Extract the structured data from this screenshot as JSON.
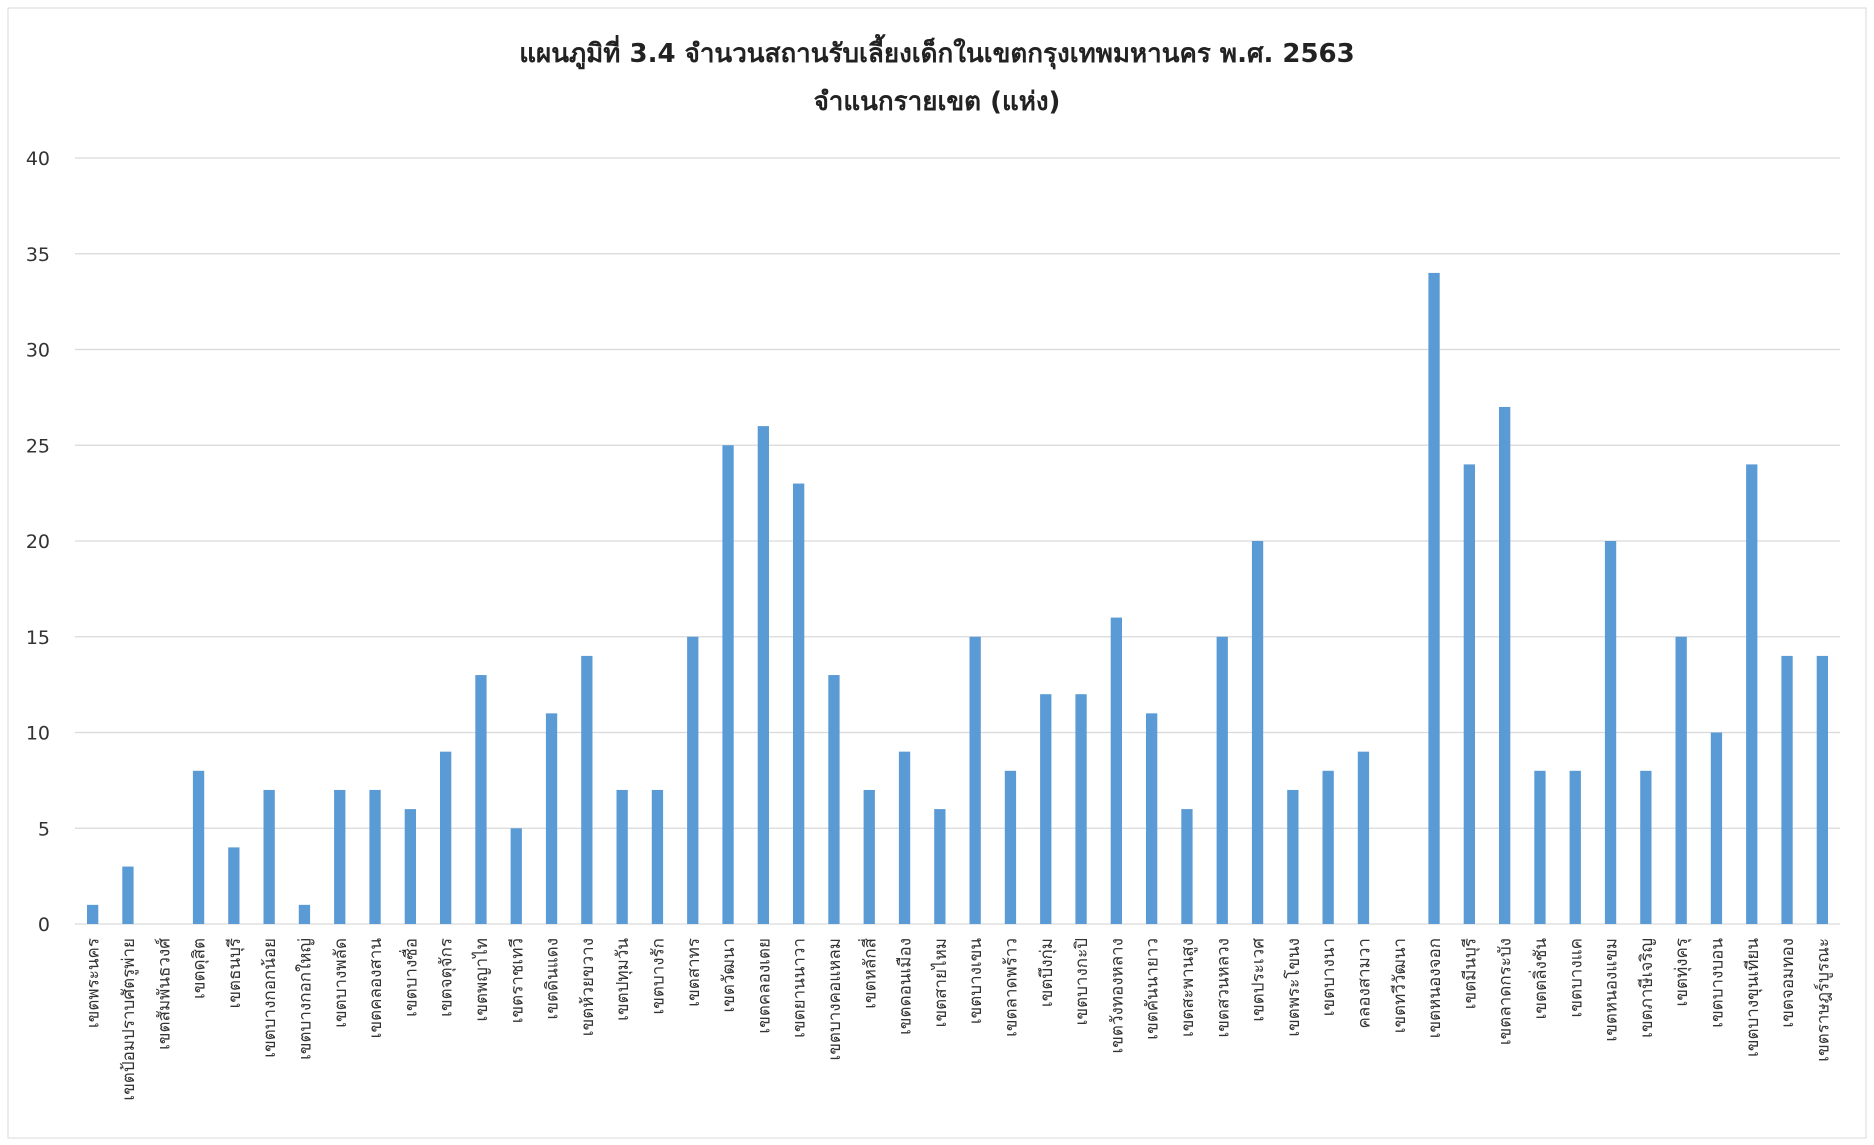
{
  "chart_data": {
    "type": "bar",
    "title": "แผนภูมิที่ 3.4 จำนวนสถานรับเลี้ยงเด็กในเขตกรุงเทพมหานคร พ.ศ. 2563",
    "subtitle": "จำแนกรายเขต (แห่ง)",
    "xlabel": "",
    "ylabel": "",
    "ylim": [
      0,
      40
    ],
    "yticks": [
      0,
      5,
      10,
      15,
      20,
      25,
      30,
      35,
      40
    ],
    "grid": true,
    "legend": "none",
    "bar_color": "#5b9bd5",
    "categories": [
      "เขตพระนคร",
      "เขตป้อมปราบศัตรูพ่าย",
      "เขตสัมพันธวงศ์",
      "เขตดุสิต",
      "เขตธนบุรี",
      "เขตบางกอกน้อย",
      "เขตบางกอกใหญ่",
      "เขตบางพลัด",
      "เขตคลองสาน",
      "เขตบางซื่อ",
      "เขตจตุจักร",
      "เขตพญาไท",
      "เขตราชเทวี",
      "เขตดินแดง",
      "เขตห้วยขวาง",
      "เขตปทุมวัน",
      "เขตบางรัก",
      "เขตสาทร",
      "เขตวัฒนา",
      "เขตคลองเตย",
      "เขตยานนาวา",
      "เขตบางคอแหลม",
      "เขตหลักสี่",
      "เขตดอนเมือง",
      "เขตสายไหม",
      "เขตบางเขน",
      "เขตลาดพร้าว",
      "เขตบึงกุ่ม",
      "เขตบางกะปิ",
      "เขตวังทองหลาง",
      "เขตคันนายาว",
      "เขตสะพานสูง",
      "เขตสวนหลวง",
      "เขตประเวศ",
      "เขตพระโขนง",
      "เขตบางนา",
      "คลองสามวา",
      "เขตทวีวัฒนา",
      "เขตหนองจอก",
      "เขตมีนบุรี",
      "เขตลาดกระบัง",
      "เขตตลิ่งชัน",
      "เขตบางแค",
      "เขตหนองแขม",
      "เขตภาษีเจริญ",
      "เขตทุ่งครุ",
      "เขตบางบอน",
      "เขตบางขุนเทียน",
      "เขตจอมทอง",
      "เขตราษฎร์บูรณะ"
    ],
    "values": [
      1,
      3,
      0,
      8,
      4,
      7,
      1,
      7,
      7,
      6,
      9,
      13,
      5,
      11,
      14,
      7,
      7,
      15,
      25,
      26,
      23,
      13,
      7,
      9,
      6,
      15,
      8,
      12,
      12,
      16,
      11,
      6,
      15,
      20,
      7,
      8,
      9,
      0,
      34,
      24,
      27,
      8,
      8,
      20,
      8,
      15,
      10,
      24,
      14,
      14
    ]
  }
}
